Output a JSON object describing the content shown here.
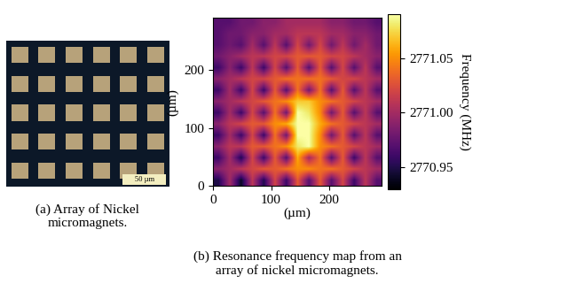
{
  "photo": {
    "caption": "(a) Array of Nickel\nmicromagnets.",
    "scale_bar": "50 µm"
  },
  "chart_data": {
    "type": "heatmap",
    "caption": "(b) Resonance frequency map from an\narray of nickel micromagnets.",
    "x_label": "(µm)",
    "y_label": "(µm)",
    "xlim": [
      0,
      290
    ],
    "ylim": [
      0,
      290
    ],
    "xticks": [
      0,
      100,
      200
    ],
    "yticks": [
      0,
      100,
      200
    ],
    "colorbar_label": "Frequency (MHz)",
    "colorbar_range": [
      2770.93,
      2771.09
    ],
    "colorbar_ticks": [
      {
        "value": 2770.95,
        "label": "2770.95"
      },
      {
        "value": 2771.0,
        "label": "2771.00"
      },
      {
        "value": 2771.05,
        "label": "2771.05"
      }
    ],
    "cells": [
      [
        2770.95,
        2771.0,
        2770.94,
        2771.01,
        2770.95,
        2771.02,
        2770.96,
        2771.03,
        2770.97,
        2771.03,
        2770.97,
        2771.02,
        2770.96,
        2771.01,
        2770.97
      ],
      [
        2770.99,
        2771.0,
        2771.01,
        2771.02,
        2771.03,
        2771.03,
        2771.04,
        2771.05,
        2771.05,
        2771.04,
        2771.04,
        2771.03,
        2771.02,
        2771.01,
        2771.0
      ],
      [
        2770.96,
        2771.0,
        2770.95,
        2771.02,
        2770.96,
        2771.03,
        2770.97,
        2771.06,
        2771.0,
        2771.04,
        2770.97,
        2771.03,
        2770.96,
        2771.01,
        2770.97
      ],
      [
        2770.99,
        2771.01,
        2771.01,
        2771.03,
        2771.03,
        2771.04,
        2771.05,
        2771.08,
        2771.09,
        2771.05,
        2771.04,
        2771.03,
        2771.02,
        2771.01,
        2771.0
      ],
      [
        2770.96,
        2771.0,
        2770.96,
        2771.02,
        2770.96,
        2771.04,
        2770.98,
        2771.09,
        2771.09,
        2771.05,
        2770.98,
        2771.03,
        2770.97,
        2771.01,
        2770.97
      ],
      [
        2770.99,
        2771.01,
        2771.02,
        2771.03,
        2771.03,
        2771.05,
        2771.06,
        2771.09,
        2771.09,
        2771.06,
        2771.04,
        2771.03,
        2771.02,
        2771.01,
        2771.0
      ],
      [
        2770.96,
        2771.0,
        2770.96,
        2771.02,
        2770.97,
        2771.04,
        2770.98,
        2771.09,
        2771.08,
        2771.05,
        2770.98,
        2771.03,
        2770.97,
        2771.01,
        2770.97
      ],
      [
        2770.99,
        2771.0,
        2771.01,
        2771.02,
        2771.03,
        2771.04,
        2771.05,
        2771.07,
        2771.07,
        2771.05,
        2771.04,
        2771.03,
        2771.02,
        2771.01,
        2771.0
      ],
      [
        2770.96,
        2771.0,
        2770.96,
        2771.02,
        2770.96,
        2771.03,
        2770.97,
        2771.04,
        2770.98,
        2771.04,
        2770.97,
        2771.03,
        2770.97,
        2771.01,
        2770.97
      ],
      [
        2770.99,
        2771.0,
        2771.01,
        2771.02,
        2771.02,
        2771.03,
        2771.04,
        2771.04,
        2771.04,
        2771.04,
        2771.03,
        2771.02,
        2771.02,
        2771.01,
        2771.0
      ],
      [
        2770.96,
        2770.99,
        2770.96,
        2771.01,
        2770.96,
        2771.02,
        2770.97,
        2771.03,
        2770.97,
        2771.03,
        2770.97,
        2771.02,
        2770.97,
        2771.01,
        2770.97
      ],
      [
        2770.98,
        2770.99,
        2771.0,
        2771.01,
        2771.01,
        2771.02,
        2771.02,
        2771.03,
        2771.03,
        2771.03,
        2771.02,
        2771.02,
        2771.01,
        2771.0,
        2770.99
      ],
      [
        2770.97,
        2770.98,
        2770.97,
        2771.0,
        2770.97,
        2771.01,
        2770.97,
        2771.02,
        2770.98,
        2771.02,
        2770.98,
        2771.01,
        2770.98,
        2771.0,
        2770.98
      ],
      [
        2770.97,
        2770.98,
        2770.98,
        2770.99,
        2770.99,
        2771.0,
        2771.0,
        2771.01,
        2771.01,
        2771.01,
        2771.0,
        2771.0,
        2770.99,
        2770.99,
        2770.98
      ],
      [
        2770.97,
        2770.97,
        2770.98,
        2770.98,
        2770.99,
        2770.99,
        2771.0,
        2771.0,
        2771.0,
        2771.0,
        2770.99,
        2770.99,
        2770.98,
        2770.98,
        2770.97
      ]
    ]
  }
}
